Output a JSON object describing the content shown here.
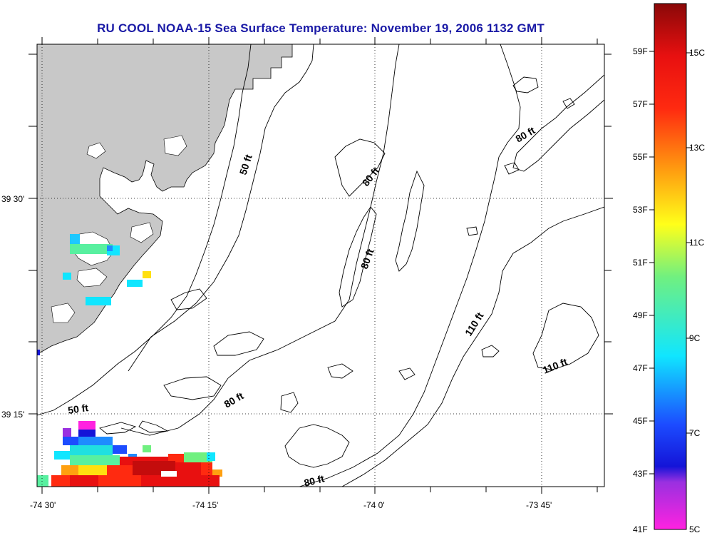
{
  "title": "RU COOL  NOAA-15  Sea Surface Temperature:  November 19, 2006 1132 GMT",
  "axes": {
    "x_ticks": [
      "-74 30'",
      "-74 15'",
      "-74 0'",
      "-73 45'"
    ],
    "y_ticks": [
      "39 30'",
      "39 15'"
    ]
  },
  "contour_labels": [
    "50 ft",
    "80 ft",
    "80 ft",
    "80 ft",
    "110 ft",
    "110 ft",
    "50 ft",
    "80 ft",
    "80 ft"
  ],
  "colorbar": {
    "fahrenheit": [
      "59F",
      "57F",
      "55F",
      "53F",
      "51F",
      "49F",
      "47F",
      "45F",
      "43F",
      "41F"
    ],
    "celsius": [
      "15C",
      "13C",
      "11C",
      "9C",
      "7C",
      "5C"
    ],
    "range_c": [
      5,
      16
    ]
  },
  "colors": {
    "land": "#c8c8c8",
    "title": "#1a1aa6",
    "contour": "#000000"
  }
}
